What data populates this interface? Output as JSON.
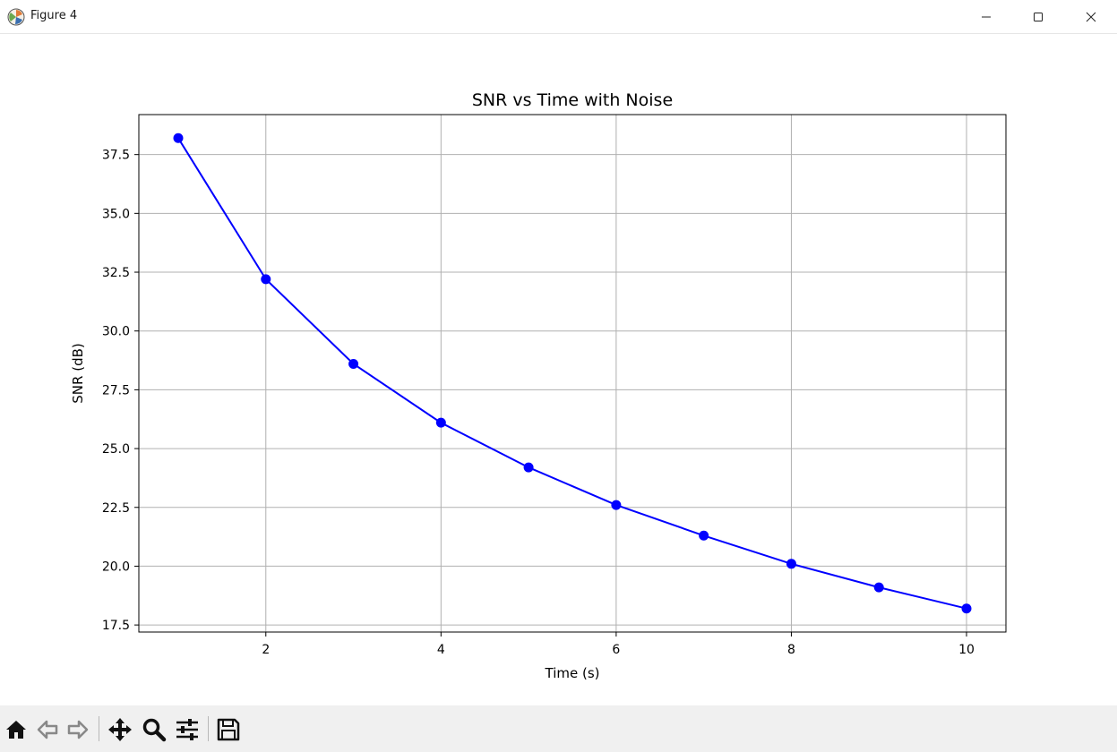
{
  "window": {
    "title": "Figure 4",
    "controls": [
      "minimize",
      "maximize",
      "close"
    ]
  },
  "toolbar": {
    "tools": [
      {
        "name": "home-icon",
        "label": "Home"
      },
      {
        "name": "back-icon",
        "label": "Back"
      },
      {
        "name": "forward-icon",
        "label": "Forward"
      },
      {
        "name": "pan-icon",
        "label": "Pan"
      },
      {
        "name": "zoom-icon",
        "label": "Zoom"
      },
      {
        "name": "configure-subplots-icon",
        "label": "Configure subplots"
      },
      {
        "name": "save-icon",
        "label": "Save"
      }
    ]
  },
  "colors": {
    "line": "#0000ff",
    "grid": "#b0b0b0",
    "toolbar_bg": "#f0f0f0"
  },
  "chart_data": {
    "type": "line",
    "title": "SNR vs Time with Noise",
    "xlabel": "Time (s)",
    "ylabel": "SNR (dB)",
    "x": [
      1,
      2,
      3,
      4,
      5,
      6,
      7,
      8,
      9,
      10
    ],
    "series": [
      {
        "values": [
          38.2,
          32.2,
          28.6,
          26.1,
          24.2,
          22.6,
          21.3,
          20.1,
          19.1,
          18.2
        ],
        "color": "#0000ff",
        "marker": "circle"
      }
    ],
    "xlim": [
      0.55,
      10.45
    ],
    "ylim": [
      17.2,
      39.2
    ],
    "xticks": [
      2,
      4,
      6,
      8,
      10
    ],
    "xtick_labels": [
      "2",
      "4",
      "6",
      "8",
      "10"
    ],
    "yticks": [
      17.5,
      20.0,
      22.5,
      25.0,
      27.5,
      30.0,
      32.5,
      35.0,
      37.5
    ],
    "ytick_labels": [
      "17.5",
      "20.0",
      "22.5",
      "25.0",
      "27.5",
      "30.0",
      "32.5",
      "35.0",
      "37.5"
    ],
    "grid": true,
    "legend": false
  }
}
